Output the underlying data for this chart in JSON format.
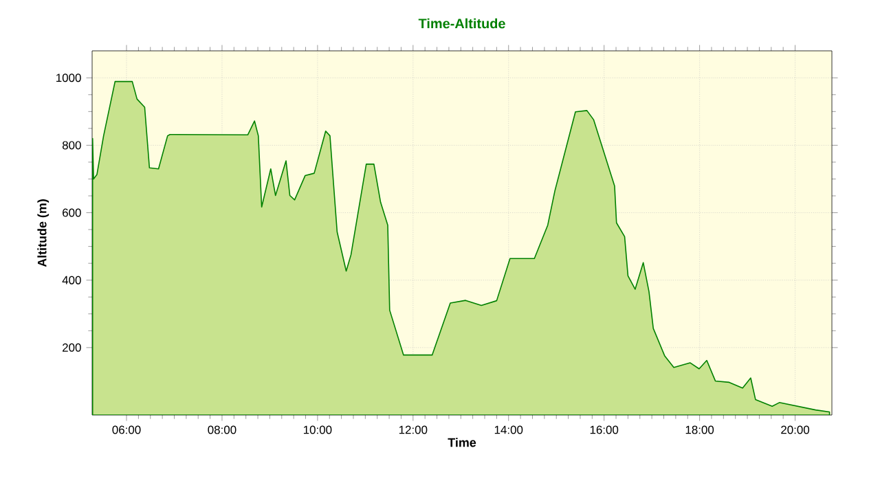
{
  "chart_data": {
    "type": "area",
    "title": "Time-Altitude",
    "xlabel": "Time",
    "ylabel": "Altitude (m)",
    "xlim": [
      5.28,
      20.77
    ],
    "ylim": [
      0,
      1080
    ],
    "xticks": [
      {
        "value": 6,
        "label": "06:00"
      },
      {
        "value": 8,
        "label": "08:00"
      },
      {
        "value": 10,
        "label": "10:00"
      },
      {
        "value": 12,
        "label": "12:00"
      },
      {
        "value": 14,
        "label": "14:00"
      },
      {
        "value": 16,
        "label": "16:00"
      },
      {
        "value": 18,
        "label": "18:00"
      },
      {
        "value": 20,
        "label": "20:00"
      }
    ],
    "yticks": [
      200,
      400,
      600,
      800,
      1000
    ],
    "grid": true,
    "series": [
      {
        "color": "#c8e38e",
        "x": [
          5.29,
          5.31,
          5.38,
          5.52,
          5.76,
          6.12,
          6.22,
          6.38,
          6.48,
          6.67,
          6.86,
          6.91,
          8.54,
          8.68,
          8.76,
          8.83,
          9.02,
          9.12,
          9.34,
          9.42,
          9.52,
          9.74,
          9.93,
          10.17,
          10.26,
          10.41,
          10.6,
          10.7,
          11.02,
          11.18,
          11.32,
          11.47,
          11.51,
          11.8,
          12.4,
          12.78,
          13.1,
          13.43,
          13.75,
          14.03,
          14.54,
          14.82,
          14.97,
          15.4,
          15.64,
          15.78,
          16.22,
          16.26,
          16.43,
          16.5,
          16.65,
          16.82,
          16.94,
          17.03,
          17.27,
          17.46,
          17.8,
          17.99,
          18.15,
          18.33,
          18.62,
          18.9,
          19.07,
          19.17,
          19.52,
          19.67,
          20.05,
          20.43,
          20.72
        ],
        "values": [
          820,
          700,
          713,
          828,
          989,
          989,
          937,
          913,
          733,
          730,
          828,
          832,
          831,
          872,
          828,
          617,
          730,
          651,
          754,
          651,
          638,
          710,
          717,
          842,
          828,
          543,
          427,
          475,
          744,
          744,
          631,
          563,
          311,
          178,
          178,
          332,
          340,
          325,
          339,
          464,
          464,
          563,
          665,
          899,
          903,
          876,
          679,
          570,
          529,
          413,
          373,
          452,
          366,
          257,
          175,
          141,
          155,
          137,
          162,
          101,
          97,
          80,
          110,
          46,
          26,
          37,
          26,
          15,
          9
        ]
      }
    ]
  }
}
